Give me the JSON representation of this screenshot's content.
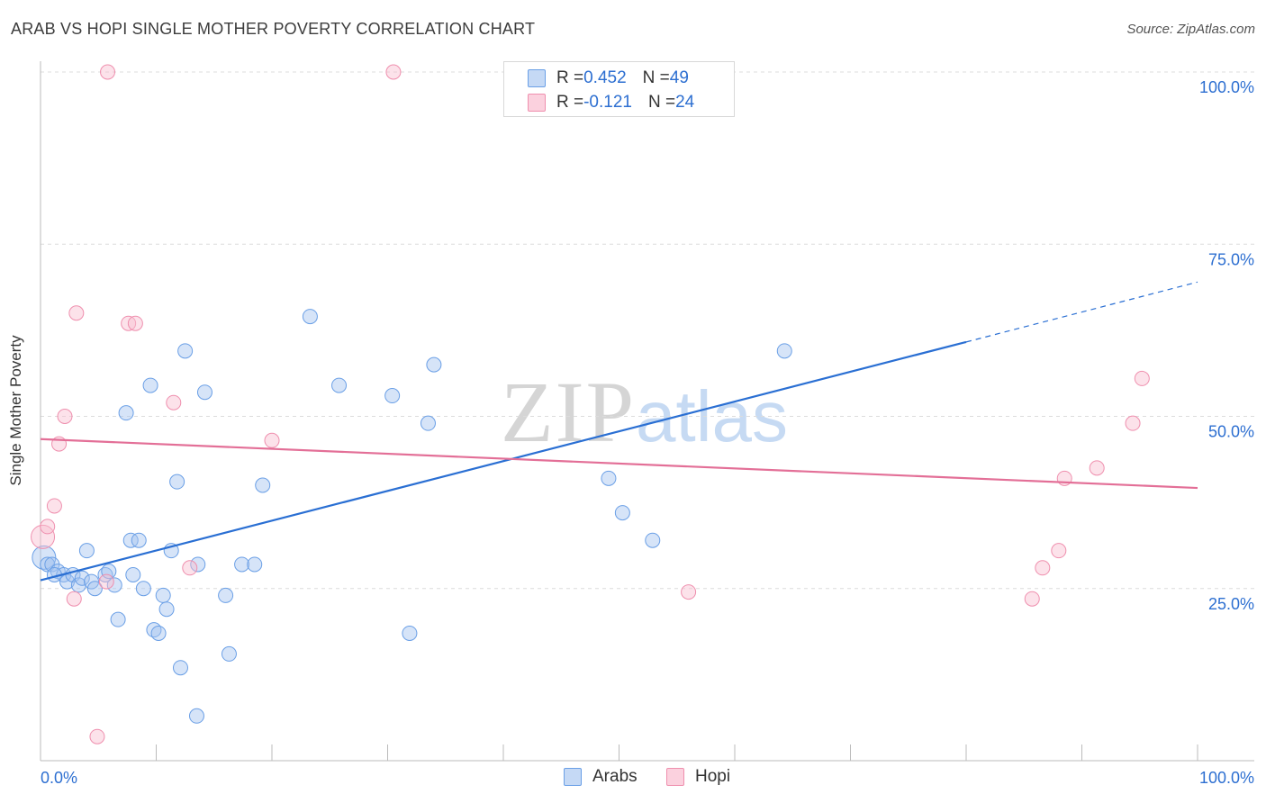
{
  "header": {
    "title": "ARAB VS HOPI SINGLE MOTHER POVERTY CORRELATION CHART",
    "source": "Source: ZipAtlas.com"
  },
  "watermark": {
    "zip": "ZIP",
    "atlas": "atlas"
  },
  "legend_top": {
    "rows": [
      {
        "r_label": "R = ",
        "r_value": "0.452",
        "n_label": "N = ",
        "n_value": "49",
        "color": "#6a9fe6"
      },
      {
        "r_label": "R = ",
        "r_value": "-0.121",
        "n_label": "N = ",
        "n_value": "24",
        "color": "#ef8fae"
      }
    ]
  },
  "legend_bottom": {
    "items": [
      {
        "label": "Arabs",
        "color": "#6a9fe6"
      },
      {
        "label": "Hopi",
        "color": "#ef8fae"
      }
    ]
  },
  "chart_data": {
    "type": "scatter",
    "title": "ARAB VS HOPI SINGLE MOTHER POVERTY CORRELATION CHART",
    "xlabel": "",
    "ylabel": "Single Mother Poverty",
    "xlim": [
      0,
      100
    ],
    "ylim": [
      0,
      100
    ],
    "x_tick_labels": [
      "0.0%",
      "100.0%"
    ],
    "y_tick_labels": [
      "25.0%",
      "50.0%",
      "75.0%",
      "100.0%"
    ],
    "y_ticks": [
      25,
      50,
      75,
      100
    ],
    "x_ticks": [
      0,
      10,
      20,
      30,
      40,
      50,
      60,
      70,
      80,
      90,
      100
    ],
    "grid": "horizontal dashed",
    "legend_placement": "top-center",
    "series": [
      {
        "name": "Arabs",
        "color": "#6a9fe6",
        "points": [
          [
            0.3,
            29.5
          ],
          [
            0.6,
            28.5
          ],
          [
            1.0,
            28.5
          ],
          [
            1.5,
            27.5
          ],
          [
            2.0,
            27.0
          ],
          [
            2.3,
            26.0
          ],
          [
            2.8,
            27.0
          ],
          [
            3.3,
            25.5
          ],
          [
            3.6,
            26.5
          ],
          [
            4.0,
            30.5
          ],
          [
            4.4,
            26.0
          ],
          [
            4.7,
            25.0
          ],
          [
            5.6,
            27.0
          ],
          [
            5.9,
            27.5
          ],
          [
            6.4,
            25.5
          ],
          [
            6.7,
            20.5
          ],
          [
            7.4,
            50.5
          ],
          [
            7.8,
            32.0
          ],
          [
            8.0,
            27.0
          ],
          [
            8.5,
            32.0
          ],
          [
            8.9,
            25.0
          ],
          [
            9.5,
            54.5
          ],
          [
            9.8,
            19.0
          ],
          [
            10.2,
            18.5
          ],
          [
            10.6,
            24.0
          ],
          [
            10.9,
            22.0
          ],
          [
            11.3,
            30.5
          ],
          [
            11.8,
            40.5
          ],
          [
            12.1,
            13.5
          ],
          [
            12.5,
            59.5
          ],
          [
            13.5,
            6.5
          ],
          [
            13.6,
            28.5
          ],
          [
            14.2,
            53.5
          ],
          [
            16.0,
            24.0
          ],
          [
            16.3,
            15.5
          ],
          [
            17.4,
            28.5
          ],
          [
            18.5,
            28.5
          ],
          [
            19.2,
            40.0
          ],
          [
            23.3,
            64.5
          ],
          [
            25.8,
            54.5
          ],
          [
            30.4,
            53.0
          ],
          [
            31.9,
            18.5
          ],
          [
            33.5,
            49.0
          ],
          [
            34.0,
            57.5
          ],
          [
            49.1,
            41.0
          ],
          [
            50.3,
            36.0
          ],
          [
            52.9,
            32.0
          ],
          [
            64.3,
            59.5
          ],
          [
            1.2,
            27.0
          ]
        ],
        "trend": {
          "x": [
            0,
            80
          ],
          "y": [
            26.2,
            60.8
          ],
          "dashed_extension": {
            "x": [
              80,
              100
            ],
            "y": [
              60.8,
              69.5
            ]
          }
        }
      },
      {
        "name": "Hopi",
        "color": "#ef8fae",
        "points": [
          [
            0.2,
            32.5
          ],
          [
            0.6,
            34.0
          ],
          [
            1.2,
            37.0
          ],
          [
            1.6,
            46.0
          ],
          [
            2.1,
            50.0
          ],
          [
            2.9,
            23.5
          ],
          [
            3.1,
            65.0
          ],
          [
            4.9,
            3.5
          ],
          [
            5.7,
            26.0
          ],
          [
            5.8,
            100.0
          ],
          [
            7.6,
            63.5
          ],
          [
            8.2,
            63.5
          ],
          [
            11.5,
            52.0
          ],
          [
            12.9,
            28.0
          ],
          [
            20.0,
            46.5
          ],
          [
            30.5,
            100.0
          ],
          [
            56.0,
            24.5
          ],
          [
            85.7,
            23.5
          ],
          [
            86.6,
            28.0
          ],
          [
            88.0,
            30.5
          ],
          [
            88.5,
            41.0
          ],
          [
            91.3,
            42.5
          ],
          [
            94.4,
            49.0
          ],
          [
            95.2,
            55.5
          ]
        ],
        "trend": {
          "x": [
            0,
            100
          ],
          "y": [
            46.7,
            39.6
          ]
        }
      }
    ]
  }
}
